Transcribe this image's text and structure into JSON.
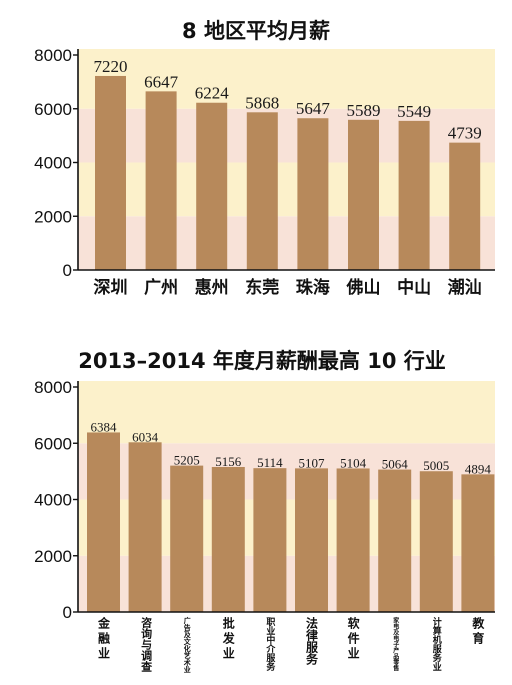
{
  "chart_data": [
    {
      "type": "bar",
      "title": "8 地区平均月薪",
      "xlabel": "",
      "ylabel": "",
      "categories": [
        "深圳",
        "广州",
        "惠州",
        "东莞",
        "珠海",
        "佛山",
        "中山",
        "潮汕"
      ],
      "values": [
        7220,
        6647,
        6224,
        5868,
        5647,
        5589,
        5549,
        4739
      ],
      "ylim": [
        0,
        8000
      ],
      "yticks": [
        0,
        2000,
        4000,
        6000,
        8000
      ],
      "data_labels": true,
      "grid": false,
      "legend": "none",
      "bar_color": "#b7895b",
      "band_colors": [
        "#f8e2d8",
        "#fcf1cb"
      ]
    },
    {
      "type": "bar",
      "title": "2013–2014 年度月薪酬最高 10 行业",
      "xlabel": "",
      "ylabel": "",
      "categories": [
        "金融业",
        "咨询与调查",
        "广告及文化艺术业",
        "批发业",
        "职业中介服务",
        "法律服务",
        "软件业",
        "家电及电子产品零售",
        "计算机服务业",
        "教育"
      ],
      "values": [
        6384,
        6034,
        5205,
        5156,
        5114,
        5107,
        5104,
        5064,
        5005,
        4894
      ],
      "ylim": [
        0,
        8000
      ],
      "yticks": [
        0,
        2000,
        4000,
        6000,
        8000
      ],
      "data_labels": true,
      "grid": false,
      "legend": "none",
      "bar_color": "#b7895b",
      "band_colors": [
        "#f8e2d8",
        "#fcf1cb"
      ]
    }
  ]
}
